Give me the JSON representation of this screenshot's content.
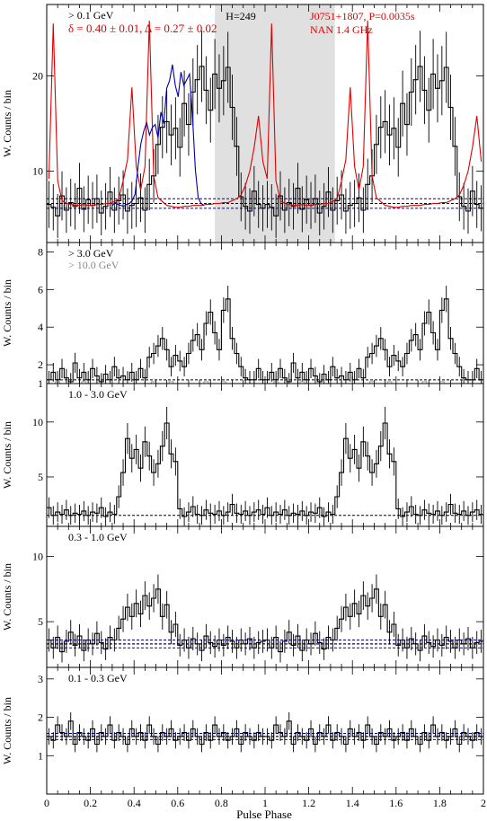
{
  "figure": {
    "xlabel": "Pulse Phase",
    "xlim": [
      0,
      2
    ],
    "xticks": [
      "0",
      "0.2",
      "0.4",
      "0.6",
      "0.8",
      "1",
      "1.2",
      "1.4",
      "1.6",
      "1.8",
      "2"
    ]
  },
  "chart_data": [
    {
      "type": "line",
      "panel": "top",
      "ylabel": "W. Counts / bin",
      "labels": {
        "energy": "> 0.1 GeV",
        "htest": "H=249",
        "source": "J0751+1807, P=0.0035s",
        "radio": "NAN 1.4 GHz",
        "peak_fit": "δ = 0.40 ± 0.01, Δ = 0.27 ± 0.02"
      },
      "ylim": [
        2.5,
        27.5
      ],
      "yticks": [
        10,
        20
      ],
      "shaded_phase": [
        0.77,
        1.32
      ],
      "background_black": 6.6,
      "background_blue": [
        6.1,
        6.6,
        7.1
      ],
      "colors": {
        "data": "#000000",
        "radio": "#e00000",
        "fit": "#0000aa",
        "shade": "#e0e0e0"
      },
      "series": [
        {
          "values": [
            6.5,
            6.2,
            5.3,
            7.4,
            5.9,
            6.7,
            6.3,
            8.2,
            6.0,
            7.0,
            6.4,
            7.1,
            5.6,
            6.3,
            7.8,
            5.9,
            6.9,
            7.5,
            5.8,
            6.4,
            6.6,
            7.2,
            5.9,
            8.6,
            9.5,
            12.8,
            14.6,
            15.2,
            13.8,
            14.5,
            12.5,
            17.1,
            14.9,
            18.3,
            19.6,
            21.0,
            18.5,
            16.4,
            20.2,
            18.7,
            19.5,
            20.9,
            16.7,
            12.6,
            7.3,
            6.3,
            5.8,
            7.9,
            6.5,
            6.1
          ]
        },
        {
          "name": "NAN 1.4 GHz",
          "values": [
            9.2,
            25.5,
            9.0,
            6.9,
            6.6,
            6.5,
            6.4,
            6.4,
            6.5,
            6.4,
            6.4,
            6.5,
            6.5,
            6.6,
            6.6,
            6.8,
            7.1,
            9.0,
            11.2,
            18.8,
            10.5,
            8.0,
            10.5,
            25.8,
            9.5,
            7.2,
            6.8,
            6.4,
            6.3,
            6.2,
            6.2,
            6.3,
            6.3,
            6.4,
            6.4,
            6.4,
            6.5,
            6.5,
            6.6,
            6.6,
            6.7,
            6.7,
            6.9,
            7.1,
            7.5,
            8.5,
            10.0,
            12.5,
            15.8,
            11.0
          ]
        },
        {
          "values": [
            6.4,
            6.7,
            6.5,
            6.4,
            6.3,
            6.5,
            6.6,
            6.9,
            7.6,
            10.5,
            12.9,
            14.2,
            15.1,
            13.8,
            14.6,
            14.9,
            13.5,
            16.2,
            15.0,
            18.7,
            19.5,
            21.2,
            19.0,
            17.8,
            20.4,
            19.0,
            19.6,
            20.2,
            15.8,
            10.2,
            7.2,
            6.6,
            6.4
          ]
        }
      ]
    },
    {
      "type": "line",
      "panel": "p2",
      "ylabel": "W. Counts / bin",
      "labels": {
        "energy": "> 3.0 GeV",
        "energy2": "> 10.0 GeV"
      },
      "ylim": [
        1,
        8.5
      ],
      "yticks": [
        1,
        2,
        4,
        6,
        8
      ],
      "background": 1.2,
      "series": [
        {
          "values": [
            1.2,
            1.6,
            1.2,
            1.8,
            1.3,
            1.1,
            2.1,
            1.3,
            1.6,
            1.2,
            1.8,
            1.4,
            1.1,
            1.5,
            1.2,
            1.9,
            1.3,
            1.4,
            1.2,
            1.6,
            1.2,
            1.8,
            1.3,
            2.4,
            2.6,
            3.0,
            3.4,
            2.8,
            1.9,
            2.5,
            2.2,
            1.9,
            2.6,
            3.3,
            3.6,
            2.8,
            4.2,
            4.8,
            3.7,
            2.8,
            4.9,
            5.5,
            3.4,
            2.6,
            1.9,
            1.3,
            1.2,
            1.2,
            1.8,
            1.2
          ]
        },
        {
          "name": "> 10.0 GeV",
          "values": [
            1.0,
            1.0,
            1.1,
            1.0,
            1.0,
            1.0,
            1.0,
            1.0,
            1.1,
            1.0,
            1.0,
            1.0,
            1.0,
            1.0,
            1.0,
            1.0,
            1.0,
            1.0,
            1.0,
            1.0,
            1.0,
            1.0,
            1.0,
            1.0,
            1.1,
            1.0,
            1.0,
            1.0,
            1.1,
            1.0,
            1.0,
            1.0,
            1.0,
            1.0,
            1.0,
            1.0,
            1.1,
            1.0,
            1.0,
            1.0,
            1.1,
            1.0,
            1.0,
            1.0,
            1.0,
            1.0,
            1.0,
            1.0,
            1.0,
            1.0
          ]
        }
      ]
    },
    {
      "type": "line",
      "panel": "p3",
      "ylabel": "W. Counts / bin",
      "labels": {
        "energy": "1.0 - 3.0 GeV"
      },
      "ylim": [
        0.5,
        13.5
      ],
      "yticks": [
        5,
        10
      ],
      "background": 1.5,
      "series": [
        {
          "values": [
            2.2,
            1.5,
            1.8,
            1.6,
            2.0,
            1.5,
            1.7,
            1.6,
            1.9,
            1.5,
            1.8,
            1.7,
            2.2,
            1.4,
            1.8,
            1.6,
            3.2,
            5.4,
            8.5,
            6.7,
            7.5,
            5.8,
            8.2,
            6.9,
            5.4,
            6.2,
            7.8,
            9.9,
            7.1,
            6.4,
            2.1,
            1.4,
            1.8,
            2.3,
            1.6,
            1.5,
            2.0,
            1.7,
            1.6,
            1.9,
            1.5,
            1.8,
            2.5,
            1.7,
            1.6,
            1.9,
            1.5,
            1.8,
            2.0,
            1.6
          ]
        }
      ]
    },
    {
      "type": "line",
      "panel": "p4",
      "ylabel": "W. Counts / bin",
      "labels": {
        "energy": "0.3 - 1.0 GeV"
      },
      "ylim": [
        1.5,
        12.3
      ],
      "yticks": [
        5,
        10
      ],
      "background_black": 3.3,
      "background_blue": [
        3.0,
        3.3,
        3.6
      ],
      "series": [
        {
          "values": [
            3.6,
            3.0,
            3.8,
            2.7,
            3.5,
            4.2,
            3.2,
            3.9,
            2.8,
            3.6,
            3.3,
            4.1,
            3.4,
            2.9,
            3.8,
            3.6,
            4.5,
            5.2,
            6.1,
            5.4,
            6.4,
            5.6,
            7.0,
            6.2,
            6.8,
            7.5,
            5.4,
            6.3,
            4.2,
            4.8,
            3.2,
            3.6,
            3.0,
            3.7,
            3.3,
            2.8,
            3.9,
            3.4,
            3.1,
            3.6,
            3.2,
            3.8,
            3.5,
            3.0,
            3.6,
            3.3,
            3.7,
            3.0,
            3.4,
            3.5
          ]
        }
      ]
    },
    {
      "type": "line",
      "panel": "p5",
      "ylabel": "W. Counts / bin",
      "labels": {
        "energy": "0.1 - 0.3 GeV"
      },
      "ylim": [
        0,
        3.3
      ],
      "yticks": [
        1,
        2,
        3
      ],
      "background_black": 1.5,
      "background_blue": [
        1.42,
        1.5,
        1.58
      ],
      "series": [
        {
          "values": [
            1.5,
            1.4,
            1.8,
            1.6,
            1.5,
            1.9,
            1.3,
            1.6,
            1.5,
            1.4,
            1.7,
            1.3,
            1.6,
            1.5,
            1.8,
            1.4,
            1.6,
            1.5,
            1.3,
            1.7,
            1.5,
            1.6,
            1.4,
            1.8,
            1.5,
            1.3,
            1.6,
            1.5,
            1.7,
            1.4,
            1.5,
            1.6,
            1.4,
            1.7,
            1.5,
            1.3,
            1.6,
            1.4,
            1.8,
            1.5,
            1.6,
            1.4,
            1.5,
            1.7,
            1.3,
            1.6,
            1.5,
            1.4,
            1.6,
            1.5
          ]
        }
      ]
    }
  ]
}
